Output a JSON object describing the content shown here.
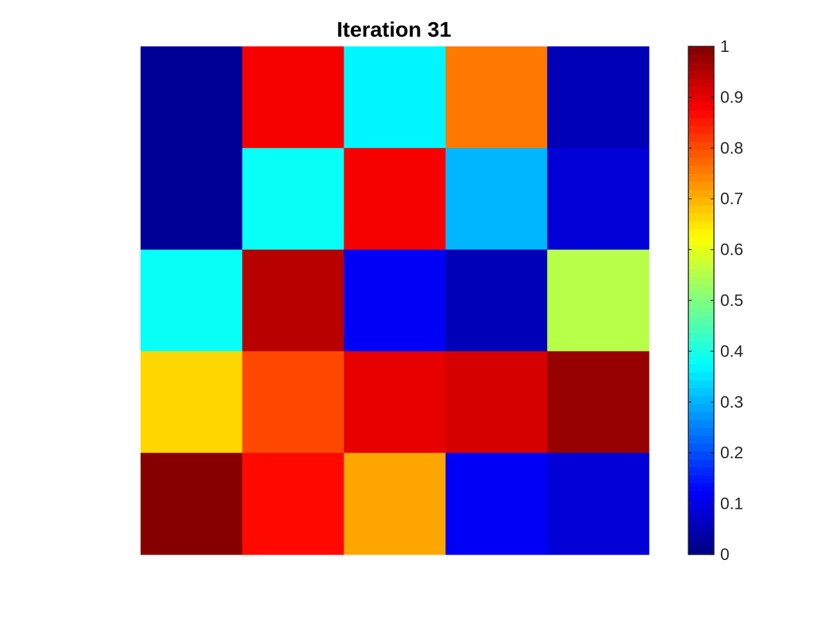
{
  "chart_data": {
    "type": "heatmap",
    "title": "Iteration 31",
    "colormap": "jet",
    "colormap_levels": 64,
    "clim": [
      0,
      1
    ],
    "rows": 5,
    "cols": 5,
    "values": [
      [
        0.02,
        0.88,
        0.36,
        0.75,
        0.05
      ],
      [
        0.02,
        0.38,
        0.88,
        0.31,
        0.09
      ],
      [
        0.38,
        0.94,
        0.12,
        0.05,
        0.55
      ],
      [
        0.67,
        0.81,
        0.9,
        0.92,
        0.98
      ],
      [
        1.0,
        0.86,
        0.71,
        0.12,
        0.08
      ]
    ],
    "grid": false,
    "colorbar": {
      "location": "right",
      "ticks": [
        0,
        0.1,
        0.2,
        0.3,
        0.4,
        0.5,
        0.6,
        0.7,
        0.8,
        0.9,
        1
      ],
      "tick_labels": [
        "0",
        "0.1",
        "0.2",
        "0.3",
        "0.4",
        "0.5",
        "0.6",
        "0.7",
        "0.8",
        "0.9",
        "1"
      ]
    }
  }
}
